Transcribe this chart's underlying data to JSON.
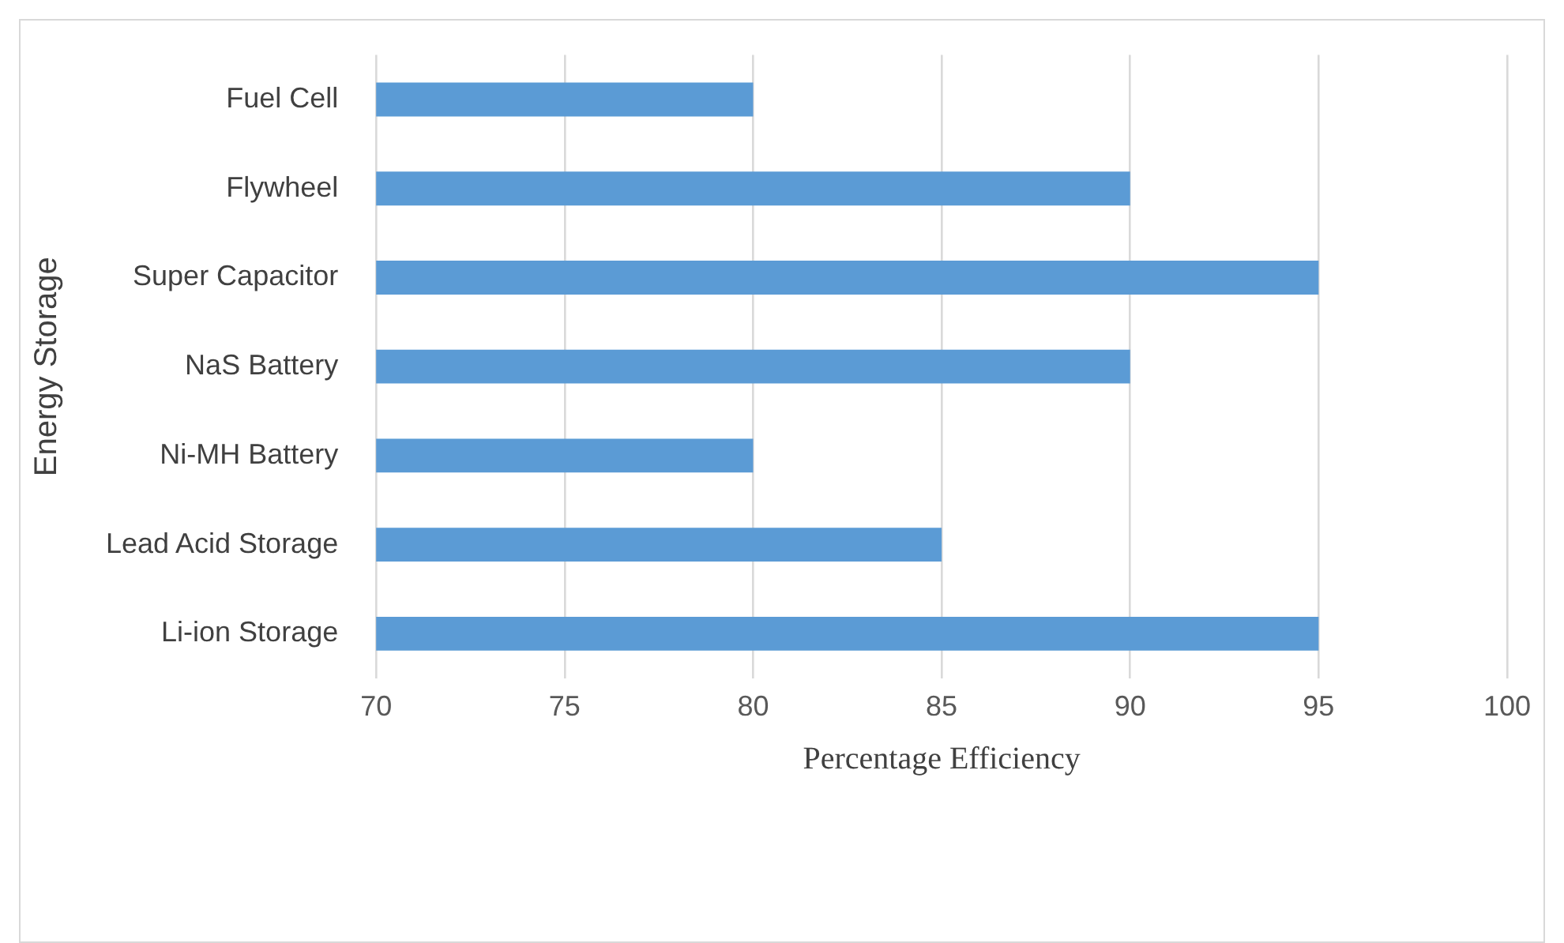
{
  "chart_data": {
    "type": "bar",
    "orientation": "horizontal",
    "xlabel": "Percentage Efficiency",
    "ylabel": "Energy Storage",
    "categories": [
      "Fuel Cell",
      "Flywheel",
      "Super Capacitor",
      "NaS Battery",
      "Ni-MH Battery",
      "Lead Acid Storage",
      "Li-ion Storage"
    ],
    "values": [
      80,
      90,
      95,
      90,
      80,
      85,
      95
    ],
    "color": "#5b9bd5",
    "xlim": [
      70,
      100
    ],
    "xticks": [
      70,
      75,
      80,
      85,
      90,
      95,
      100
    ],
    "grid": "x",
    "legend": false
  }
}
